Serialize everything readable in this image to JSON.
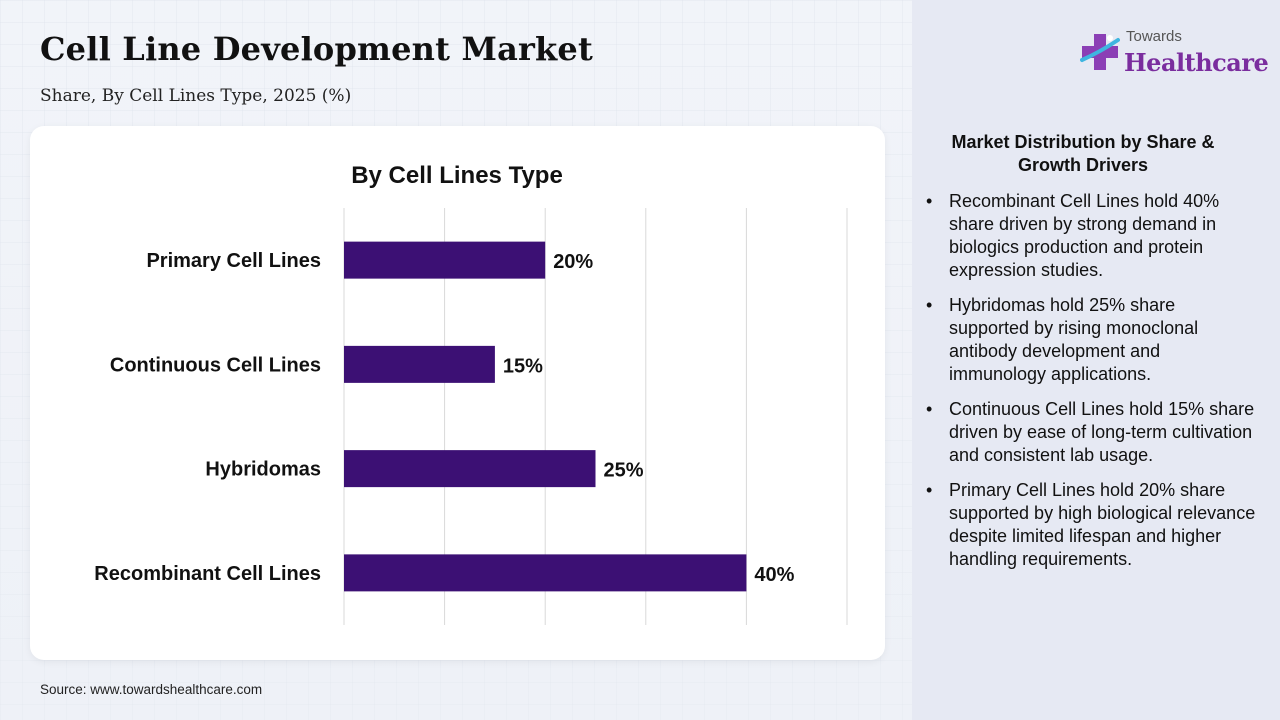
{
  "header": {
    "title": "Cell Line Development Market",
    "subtitle": "Share, By Cell Lines Type, 2025 (%)"
  },
  "logo": {
    "top_text": "Towards",
    "main_text": "Healthcare",
    "icon": "medical-cross-icon"
  },
  "colors": {
    "bar": "#3c1074",
    "logo_accent": "#7a2d9e"
  },
  "chart_data": {
    "type": "bar",
    "orientation": "horizontal",
    "title": "By Cell Lines Type",
    "xlabel": "",
    "ylabel": "",
    "categories": [
      "Primary Cell Lines",
      "Continuous Cell Lines",
      "Hybridomas",
      "Recombinant Cell Lines"
    ],
    "values": [
      20,
      15,
      25,
      40
    ],
    "data_labels": [
      "20%",
      "15%",
      "25%",
      "40%"
    ],
    "xlim": [
      0,
      50
    ],
    "grid": true,
    "legend": "none"
  },
  "sidebar": {
    "heading": "Market Distribution by Share & Growth Drivers",
    "bullets": [
      "Recombinant Cell Lines hold 40% share driven by strong demand in biologics production and protein expression studies.",
      "Hybridomas hold 25% share supported by rising monoclonal antibody development and immunology applications.",
      "Continuous Cell Lines hold 15% share driven by ease of long-term cultivation and consistent lab usage.",
      "Primary Cell Lines hold 20% share supported by high biological relevance despite limited lifespan and higher handling requirements."
    ]
  },
  "footer": {
    "source": "Source: www.towardshealthcare.com"
  }
}
